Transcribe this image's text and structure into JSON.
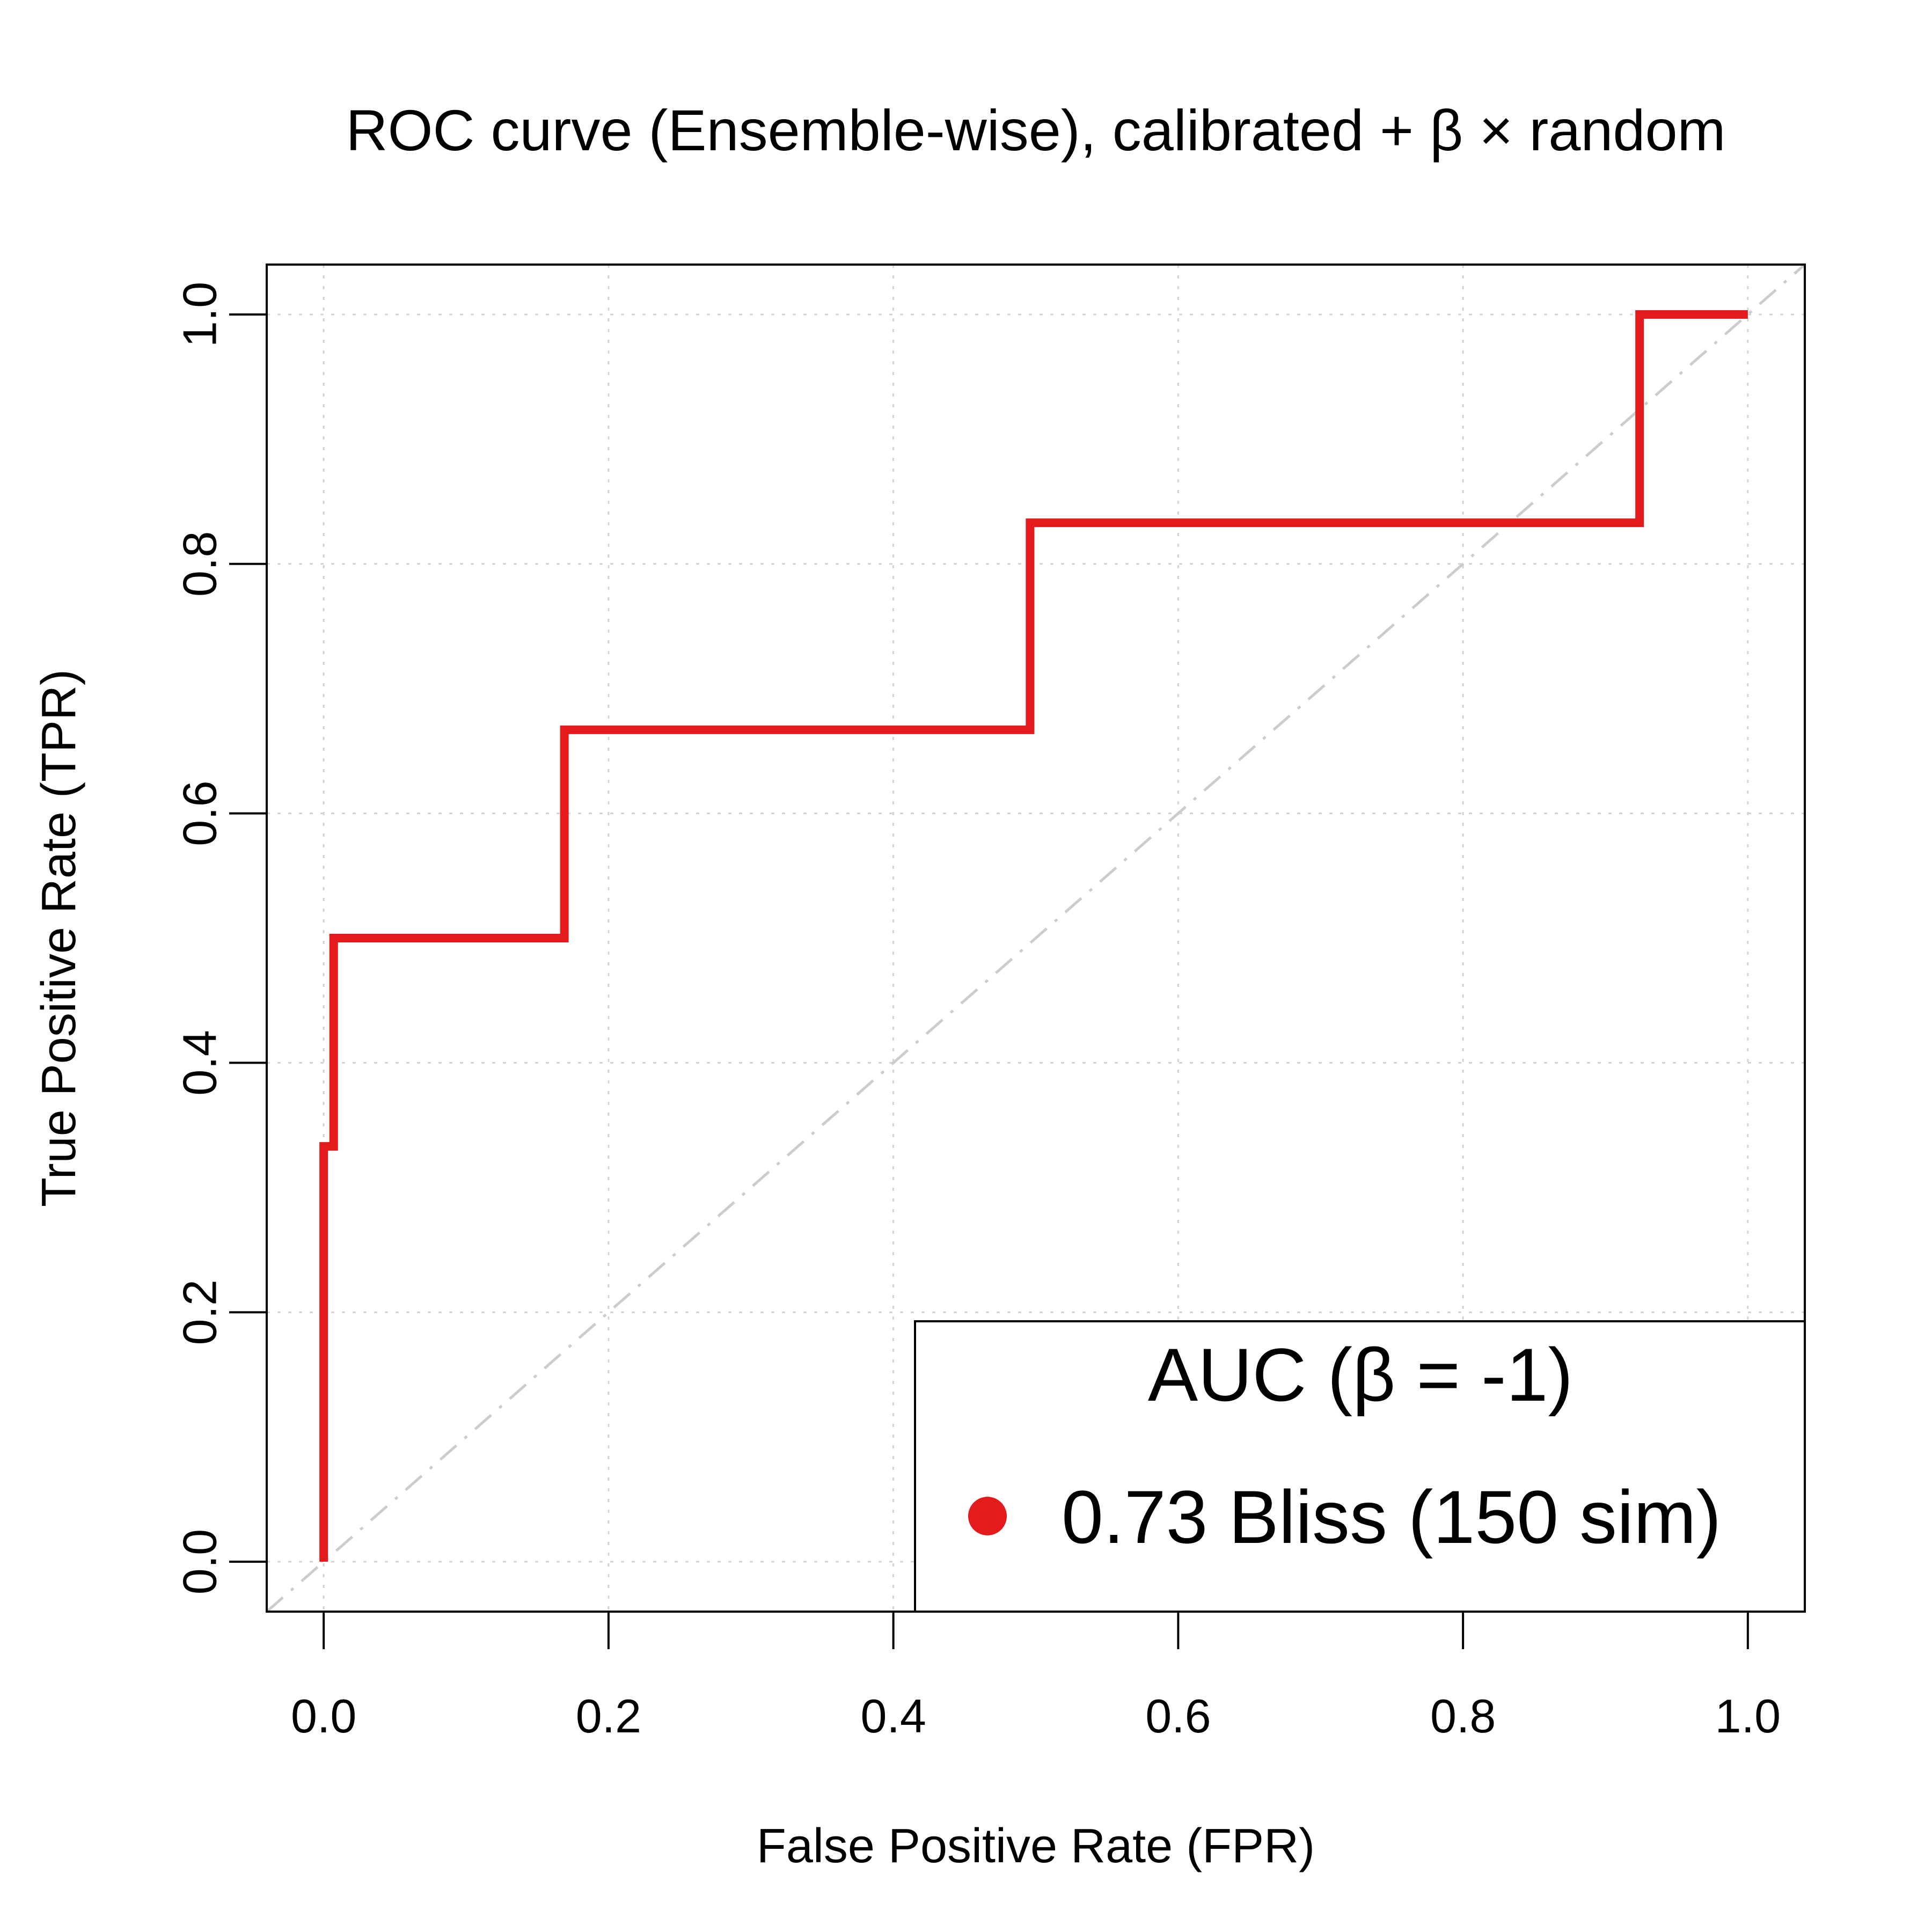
{
  "chart_data": {
    "type": "line",
    "title": "ROC curve (Ensemble-wise), calibrated + β × random",
    "xlabel": "False Positive Rate (FPR)",
    "ylabel": "True Positive Rate (TPR)",
    "xlim": [
      -0.04,
      1.04
    ],
    "ylim": [
      -0.04,
      1.04
    ],
    "x_ticks": [
      0.0,
      0.2,
      0.4,
      0.6,
      0.8,
      1.0
    ],
    "y_ticks": [
      0.0,
      0.2,
      0.4,
      0.6,
      0.8,
      1.0
    ],
    "x_tick_labels": [
      "0.0",
      "0.2",
      "0.4",
      "0.6",
      "0.8",
      "1.0"
    ],
    "y_tick_labels": [
      "0.0",
      "0.2",
      "0.4",
      "0.6",
      "0.8",
      "1.0"
    ],
    "grid": true,
    "diagonal_reference": {
      "x": [
        0,
        1
      ],
      "y": [
        0,
        1
      ],
      "color": "#cccccc",
      "style": "dashed"
    },
    "series": [
      {
        "name": "0.73 Bliss (150 sim)",
        "color": "#e41a1c",
        "x": [
          0.0,
          0.0,
          0.007,
          0.007,
          0.169,
          0.169,
          0.496,
          0.496,
          0.924,
          0.924,
          1.0
        ],
        "y": [
          0.0,
          0.333,
          0.333,
          0.5,
          0.5,
          0.667,
          0.667,
          0.833,
          0.833,
          1.0,
          1.0
        ]
      }
    ],
    "legend": {
      "title": "AUC (β = -1)",
      "position": "bottom-right",
      "entries": [
        {
          "label": "0.73 Bliss (150 sim)",
          "color": "#e41a1c",
          "marker": "circle"
        }
      ]
    }
  }
}
